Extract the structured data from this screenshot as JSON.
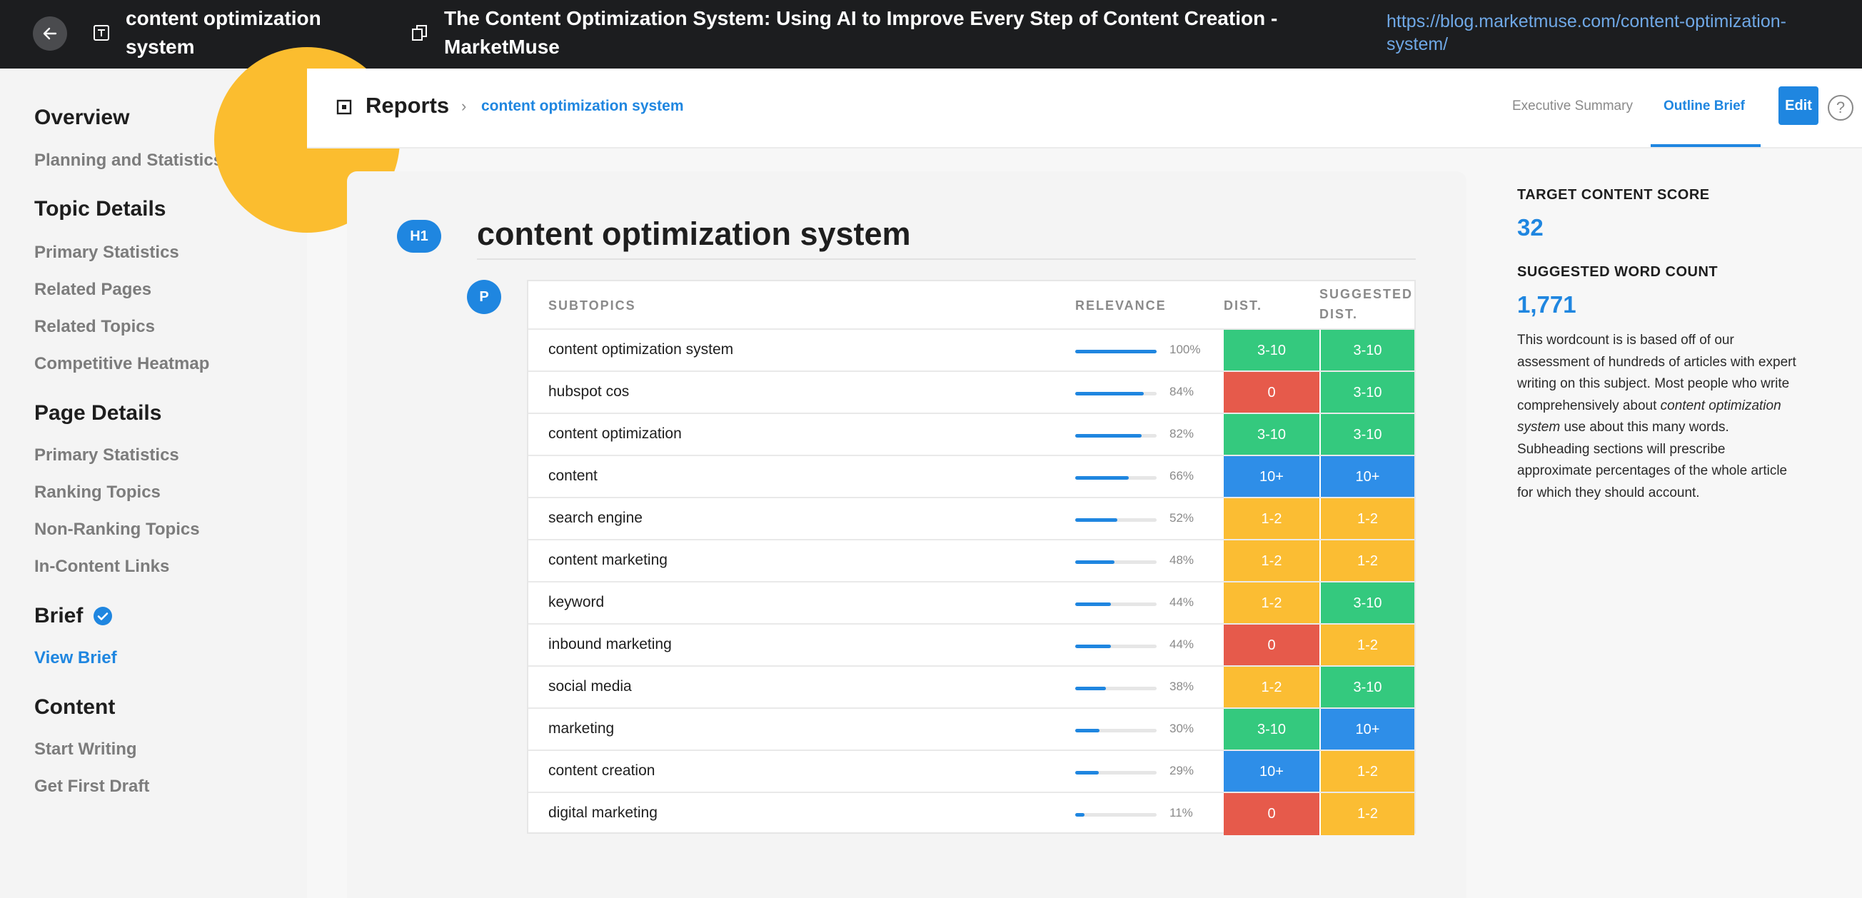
{
  "topbar": {
    "title": "content optimization system",
    "page_title": "The Content Optimization System: Using AI to Improve Every Step of Content Creation - MarketMuse",
    "url": "https://blog.marketmuse.com/content-optimization-system/"
  },
  "sidebar": {
    "overview": {
      "label": "Overview",
      "items": [
        "Planning and Statistics"
      ]
    },
    "topic_details": {
      "label": "Topic Details",
      "items": [
        "Primary Statistics",
        "Related Pages",
        "Related Topics",
        "Competitive Heatmap"
      ]
    },
    "page_details": {
      "label": "Page Details",
      "items": [
        "Primary Statistics",
        "Ranking Topics",
        "Non-Ranking Topics",
        "In-Content Links"
      ]
    },
    "brief": {
      "label": "Brief",
      "items": [
        "View Brief"
      ]
    },
    "content": {
      "label": "Content",
      "items": [
        "Start Writing",
        "Get First Draft"
      ]
    }
  },
  "header": {
    "reports": "Reports",
    "breadcrumb": "content optimization system",
    "tabs": [
      "Executive Summary",
      "Outline Brief"
    ],
    "active_tab": "Outline Brief",
    "edit": "Edit",
    "help": "?"
  },
  "brief": {
    "h1_badge": "H1",
    "p_badge": "P",
    "heading": "content optimization system",
    "columns": {
      "subtopics": "SUBTOPICS",
      "relevance": "RELEVANCE",
      "dist": "DIST.",
      "suggested": "SUGGESTED DIST."
    },
    "rows": [
      {
        "topic": "content optimization system",
        "relevance": 100,
        "pct": "100%",
        "dist": "3-10",
        "dist_color": "green",
        "sug": "3-10",
        "sug_color": "green"
      },
      {
        "topic": "hubspot cos",
        "relevance": 84,
        "pct": "84%",
        "dist": "0",
        "dist_color": "red",
        "sug": "3-10",
        "sug_color": "green"
      },
      {
        "topic": "content optimization",
        "relevance": 82,
        "pct": "82%",
        "dist": "3-10",
        "dist_color": "green",
        "sug": "3-10",
        "sug_color": "green"
      },
      {
        "topic": "content",
        "relevance": 66,
        "pct": "66%",
        "dist": "10+",
        "dist_color": "blue",
        "sug": "10+",
        "sug_color": "blue"
      },
      {
        "topic": "search engine",
        "relevance": 52,
        "pct": "52%",
        "dist": "1-2",
        "dist_color": "yellow",
        "sug": "1-2",
        "sug_color": "yellow"
      },
      {
        "topic": "content marketing",
        "relevance": 48,
        "pct": "48%",
        "dist": "1-2",
        "dist_color": "yellow",
        "sug": "1-2",
        "sug_color": "yellow"
      },
      {
        "topic": "keyword",
        "relevance": 44,
        "pct": "44%",
        "dist": "1-2",
        "dist_color": "yellow",
        "sug": "3-10",
        "sug_color": "green"
      },
      {
        "topic": "inbound marketing",
        "relevance": 44,
        "pct": "44%",
        "dist": "0",
        "dist_color": "red",
        "sug": "1-2",
        "sug_color": "yellow"
      },
      {
        "topic": "social media",
        "relevance": 38,
        "pct": "38%",
        "dist": "1-2",
        "dist_color": "yellow",
        "sug": "3-10",
        "sug_color": "green"
      },
      {
        "topic": "marketing",
        "relevance": 30,
        "pct": "30%",
        "dist": "3-10",
        "dist_color": "green",
        "sug": "10+",
        "sug_color": "blue"
      },
      {
        "topic": "content creation",
        "relevance": 29,
        "pct": "29%",
        "dist": "10+",
        "dist_color": "blue",
        "sug": "1-2",
        "sug_color": "yellow"
      },
      {
        "topic": "digital marketing",
        "relevance": 11,
        "pct": "11%",
        "dist": "0",
        "dist_color": "red",
        "sug": "1-2",
        "sug_color": "yellow"
      }
    ]
  },
  "right_panel": {
    "target_label": "TARGET CONTENT SCORE",
    "target_value": "32",
    "word_label": "SUGGESTED WORD COUNT",
    "word_value": "1,771",
    "desc_before": "This wordcount is is based off of our assessment of hundreds of articles with expert writing on this subject. Most people who write comprehensively about ",
    "desc_topic": "content optimization system",
    "desc_after": " use about this many words. Subheading sections will prescribe approximate percentages of the whole article for which they should account."
  },
  "colors": {
    "green": "#34c97e",
    "red": "#e65a4b",
    "blue": "#2e8ee8",
    "yellow": "#fbbd33",
    "accent": "#1f86e0"
  }
}
